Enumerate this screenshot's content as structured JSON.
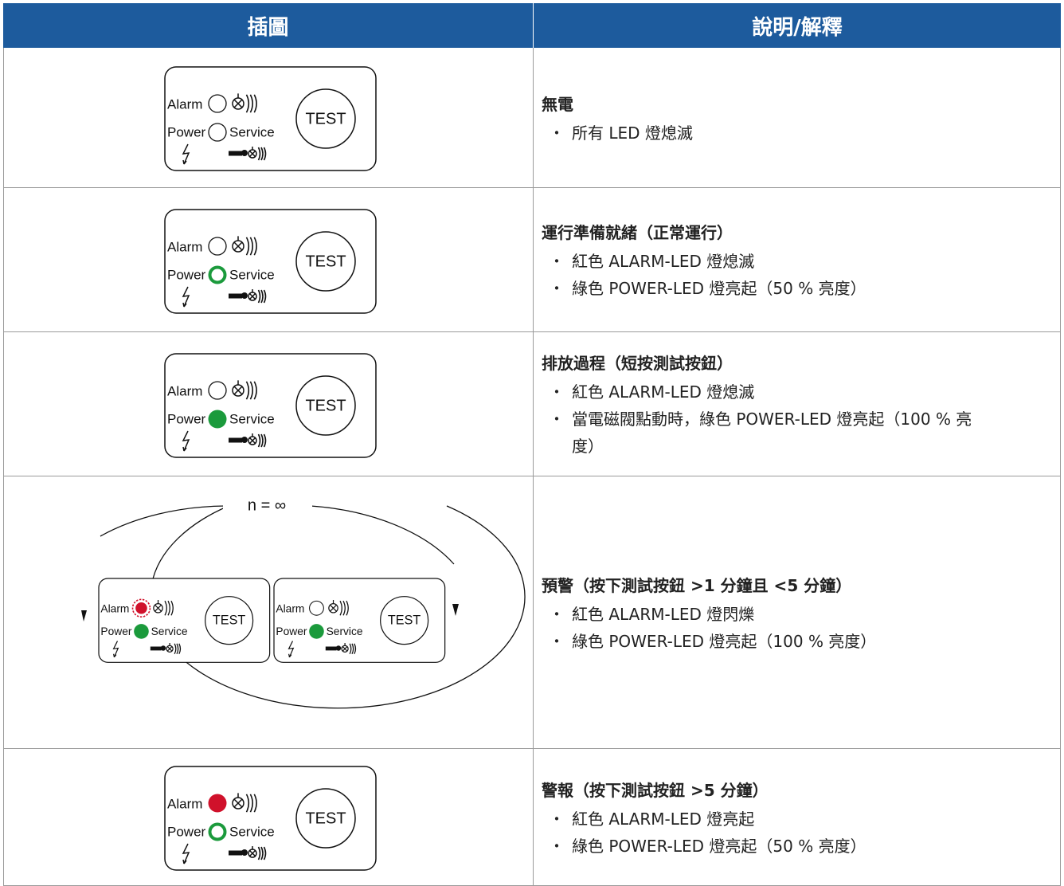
{
  "header": [
    "插圖",
    "說明/解釋"
  ],
  "panel_labels": {
    "alarm": "Alarm",
    "power": "Power",
    "service": "Service",
    "test": "TEST"
  },
  "loop_label": "n = ∞",
  "rows": [
    {
      "title": "無電",
      "bullets": [
        "所有 LED 燈熄滅"
      ]
    },
    {
      "title": "運行準備就緒（正常運行）",
      "bullets": [
        "紅色 ALARM-LED 燈熄滅",
        "綠色 POWER-LED 燈亮起（50 % 亮度）"
      ]
    },
    {
      "title": "排放過程（短按測試按鈕）",
      "bullets": [
        "紅色 ALARM-LED 燈熄滅",
        "當電磁閥點動時，綠色 POWER-LED 燈亮起（100 % 亮度）"
      ]
    },
    {
      "title": "預警（按下測試按鈕 >1 分鐘且 <5 分鐘）",
      "bullets": [
        "紅色 ALARM-LED 燈閃爍",
        "綠色 POWER-LED 燈亮起（100 % 亮度）"
      ]
    },
    {
      "title": "警報（按下測試按鈕 >5 分鐘）",
      "bullets": [
        "紅色 ALARM-LED 燈亮起",
        "綠色 POWER-LED 燈亮起（50 % 亮度）"
      ]
    }
  ]
}
